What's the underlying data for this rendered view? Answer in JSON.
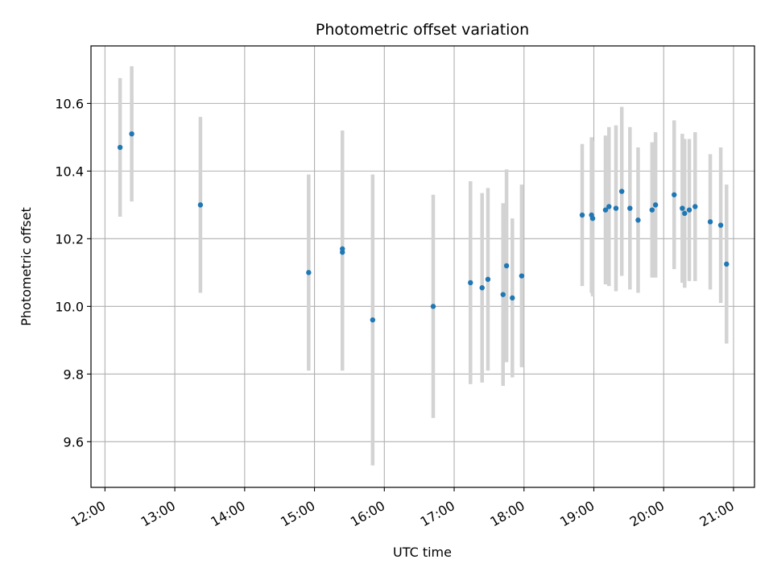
{
  "chart_data": {
    "type": "scatter",
    "title": "Photometric offset variation",
    "xlabel": "UTC time",
    "ylabel": "Photometric offset",
    "x_axis": "time",
    "xlim": [
      "11:48",
      "21:18"
    ],
    "ylim": [
      9.465,
      10.77
    ],
    "x_ticks": [
      "12:00",
      "13:00",
      "14:00",
      "15:00",
      "16:00",
      "17:00",
      "18:00",
      "19:00",
      "20:00",
      "21:00"
    ],
    "y_ticks": [
      "9.6",
      "9.8",
      "10.0",
      "10.2",
      "10.4",
      "10.6"
    ],
    "grid": true,
    "colors": {
      "points": "#1f77b4",
      "error_bars": "#d3d3d3",
      "grid": "#b0b0b0"
    },
    "points": [
      {
        "x": "12:13",
        "y": 10.47,
        "err": 0.205
      },
      {
        "x": "12:23",
        "y": 10.51,
        "err": 0.2
      },
      {
        "x": "13:22",
        "y": 10.3,
        "err": 0.26
      },
      {
        "x": "14:55",
        "y": 10.1,
        "err": 0.29
      },
      {
        "x": "15:24",
        "y": 10.16,
        "err": 0.35
      },
      {
        "x": "15:24",
        "y": 10.17,
        "err": 0.35
      },
      {
        "x": "15:50",
        "y": 9.96,
        "err": 0.43
      },
      {
        "x": "16:42",
        "y": 10.0,
        "err": 0.33
      },
      {
        "x": "17:14",
        "y": 10.07,
        "err": 0.3
      },
      {
        "x": "17:24",
        "y": 10.055,
        "err": 0.28
      },
      {
        "x": "17:29",
        "y": 10.08,
        "err": 0.27
      },
      {
        "x": "17:42",
        "y": 10.035,
        "err": 0.27
      },
      {
        "x": "17:45",
        "y": 10.12,
        "err": 0.285
      },
      {
        "x": "17:50",
        "y": 10.025,
        "err": 0.235
      },
      {
        "x": "17:58",
        "y": 10.09,
        "err": 0.27
      },
      {
        "x": "18:50",
        "y": 10.27,
        "err": 0.21
      },
      {
        "x": "18:58",
        "y": 10.27,
        "err": 0.23
      },
      {
        "x": "18:59",
        "y": 10.26,
        "err": 0.23
      },
      {
        "x": "19:10",
        "y": 10.285,
        "err": 0.22
      },
      {
        "x": "19:13",
        "y": 10.295,
        "err": 0.235
      },
      {
        "x": "19:19",
        "y": 10.29,
        "err": 0.245
      },
      {
        "x": "19:24",
        "y": 10.34,
        "err": 0.25
      },
      {
        "x": "19:31",
        "y": 10.29,
        "err": 0.24
      },
      {
        "x": "19:38",
        "y": 10.255,
        "err": 0.215
      },
      {
        "x": "19:50",
        "y": 10.285,
        "err": 0.2
      },
      {
        "x": "19:53",
        "y": 10.3,
        "err": 0.215
      },
      {
        "x": "20:09",
        "y": 10.33,
        "err": 0.22
      },
      {
        "x": "20:16",
        "y": 10.29,
        "err": 0.22
      },
      {
        "x": "20:18",
        "y": 10.275,
        "err": 0.22
      },
      {
        "x": "20:22",
        "y": 10.285,
        "err": 0.21
      },
      {
        "x": "20:27",
        "y": 10.295,
        "err": 0.22
      },
      {
        "x": "20:40",
        "y": 10.25,
        "err": 0.2
      },
      {
        "x": "20:49",
        "y": 10.24,
        "err": 0.23
      },
      {
        "x": "20:54",
        "y": 10.125,
        "err": 0.235
      }
    ]
  }
}
